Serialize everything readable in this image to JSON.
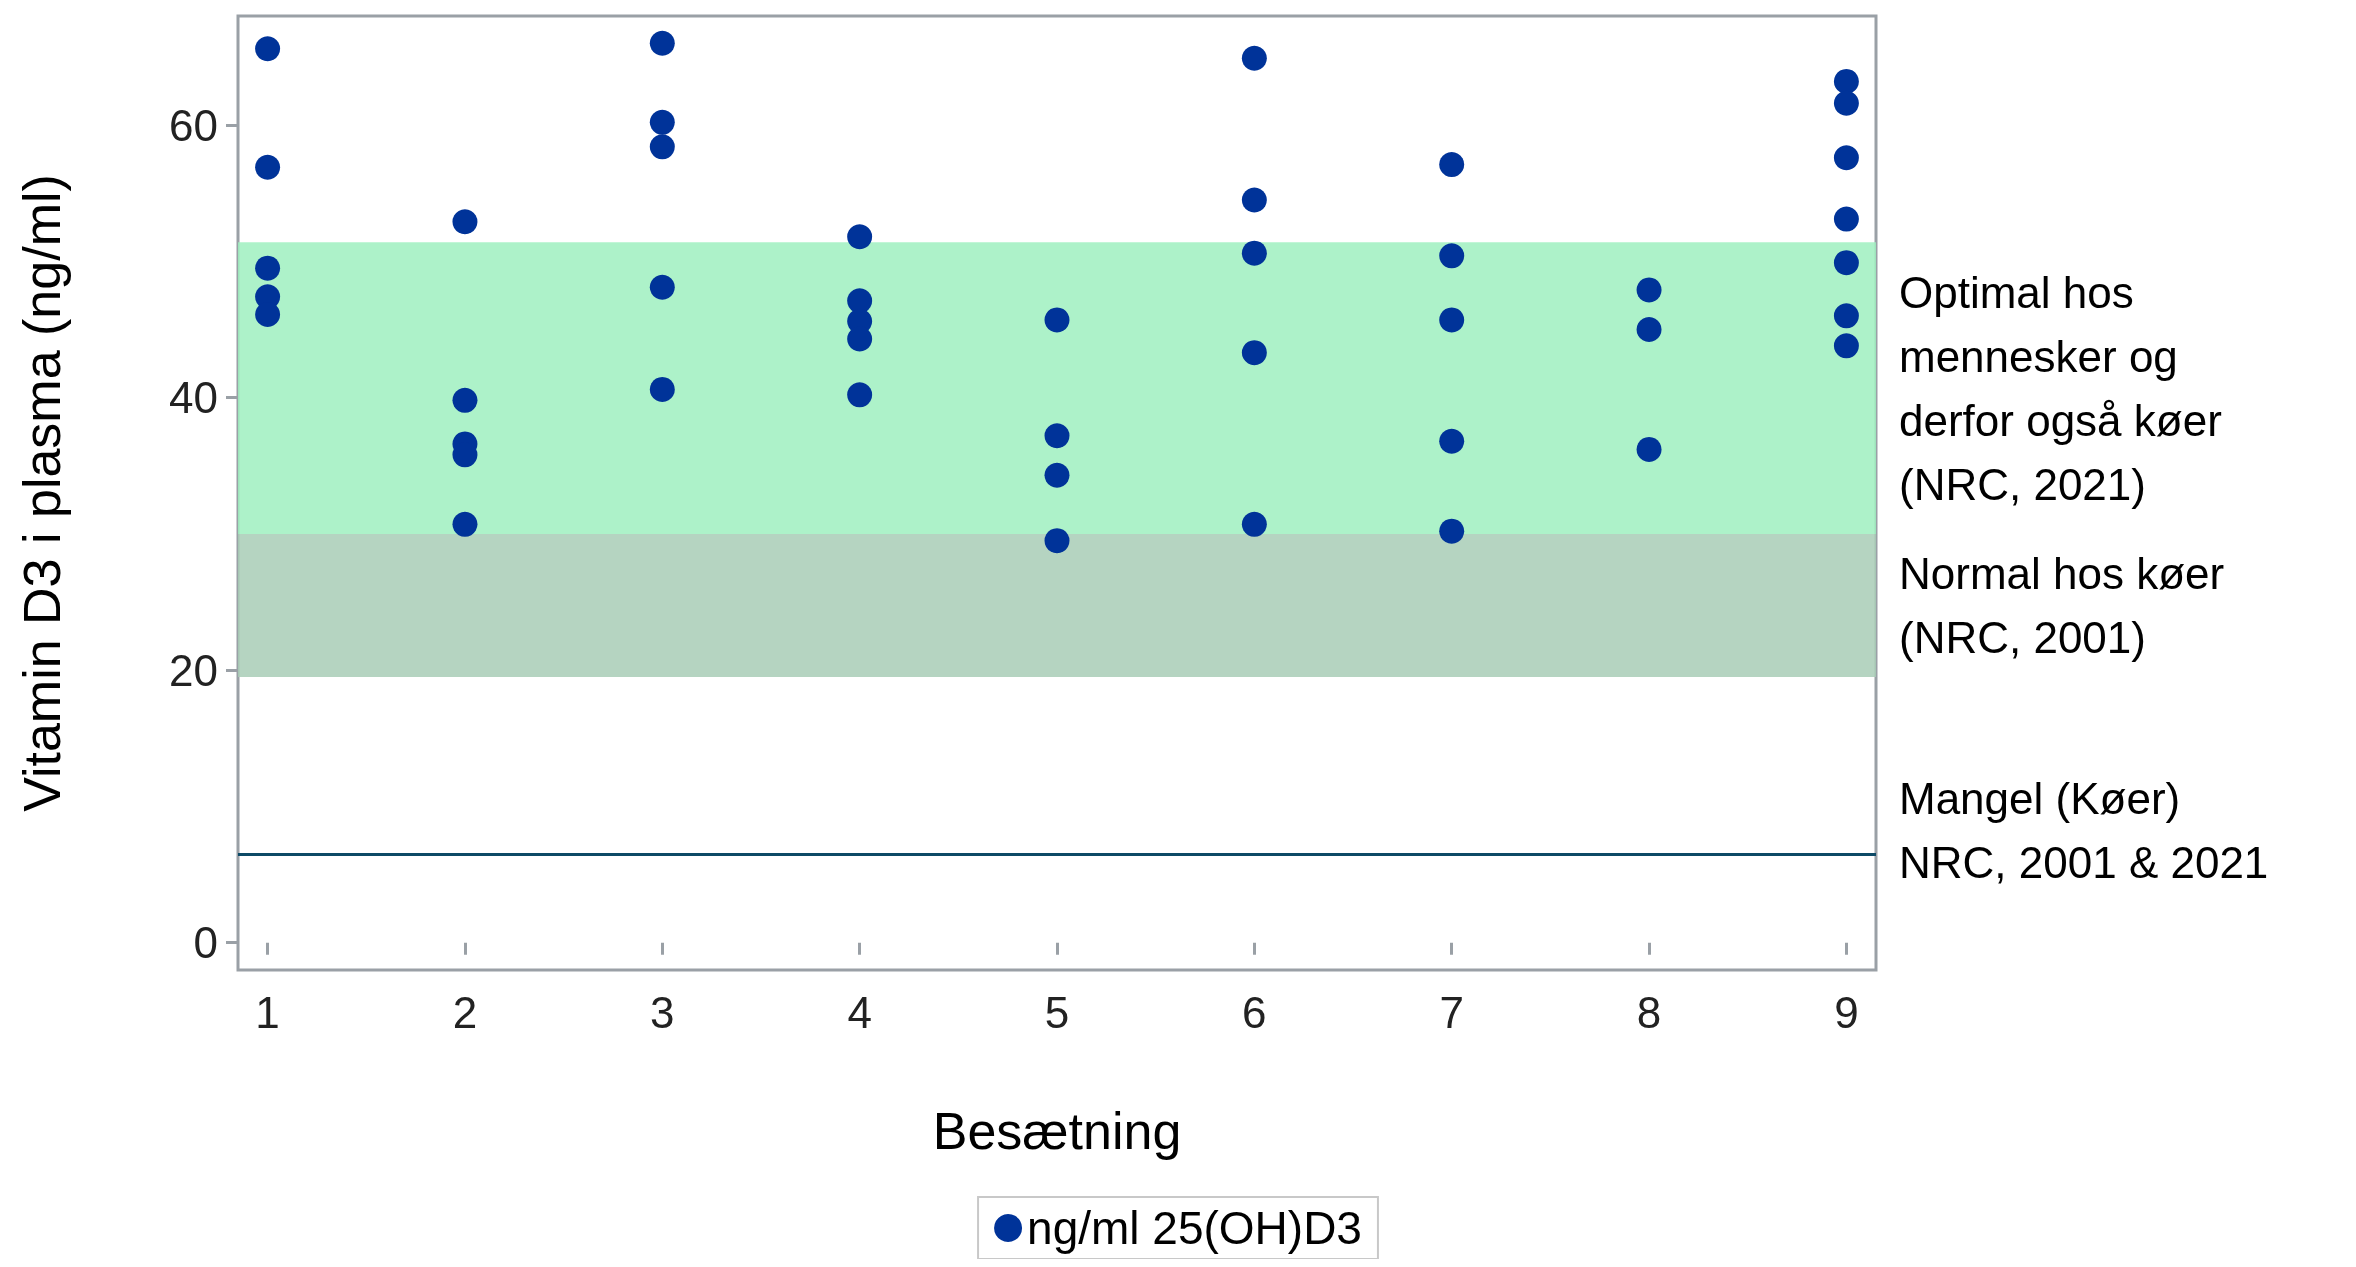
{
  "chart_data": {
    "type": "scatter",
    "xlabel": "Besætning",
    "ylabel": "Vitamin D3 i plasma (ng/ml)",
    "xlim": [
      0.85,
      9.15
    ],
    "xticks": [
      1,
      2,
      3,
      4,
      5,
      6,
      7,
      8,
      9
    ],
    "ylim": [
      -2,
      68
    ],
    "yticks": [
      0,
      20,
      40,
      60
    ],
    "grid": false,
    "legend": "bottom",
    "marker": "circle",
    "series": [
      {
        "name": "ng/ml 25(OH)D3",
        "color": "#003399",
        "x": [
          1,
          1,
          1,
          1,
          1,
          2,
          2,
          2,
          2,
          2,
          3,
          3,
          3,
          3,
          3,
          4,
          4,
          4,
          4,
          4,
          5,
          5,
          5,
          5,
          6,
          6,
          6,
          6,
          6,
          7,
          7,
          7,
          7,
          7,
          8,
          8,
          8,
          9,
          9,
          9,
          9,
          9,
          9,
          9
        ],
        "values": [
          65.6,
          56.9,
          49.5,
          47.4,
          46.1,
          52.9,
          39.8,
          36.6,
          35.8,
          30.7,
          66.0,
          60.2,
          58.4,
          48.1,
          40.6,
          51.8,
          47.1,
          45.6,
          44.3,
          40.2,
          45.7,
          37.2,
          34.3,
          29.5,
          64.9,
          54.5,
          50.6,
          43.3,
          30.7,
          57.1,
          50.4,
          45.7,
          36.8,
          30.2,
          47.9,
          45.0,
          36.2,
          63.2,
          61.6,
          57.6,
          53.1,
          49.9,
          46.0,
          43.8
        ]
      }
    ],
    "bands": [
      {
        "axis": "y",
        "from": 30,
        "to": 51.4,
        "label": "Optimal hos mennesker og derfor også køer (NRC, 2021)",
        "color": "#9ff0bf"
      },
      {
        "axis": "y",
        "from": 19.5,
        "to": 30,
        "label": "Normal hos køer (NRC, 2001)",
        "color": "#a8ccb6"
      }
    ],
    "ref_lines": [
      {
        "axis": "y",
        "value": 6.5,
        "label": "Mangel (Køer) NRC, 2001 & 2021",
        "color": "#0d4a66",
        "line_style": "solid"
      }
    ]
  }
}
